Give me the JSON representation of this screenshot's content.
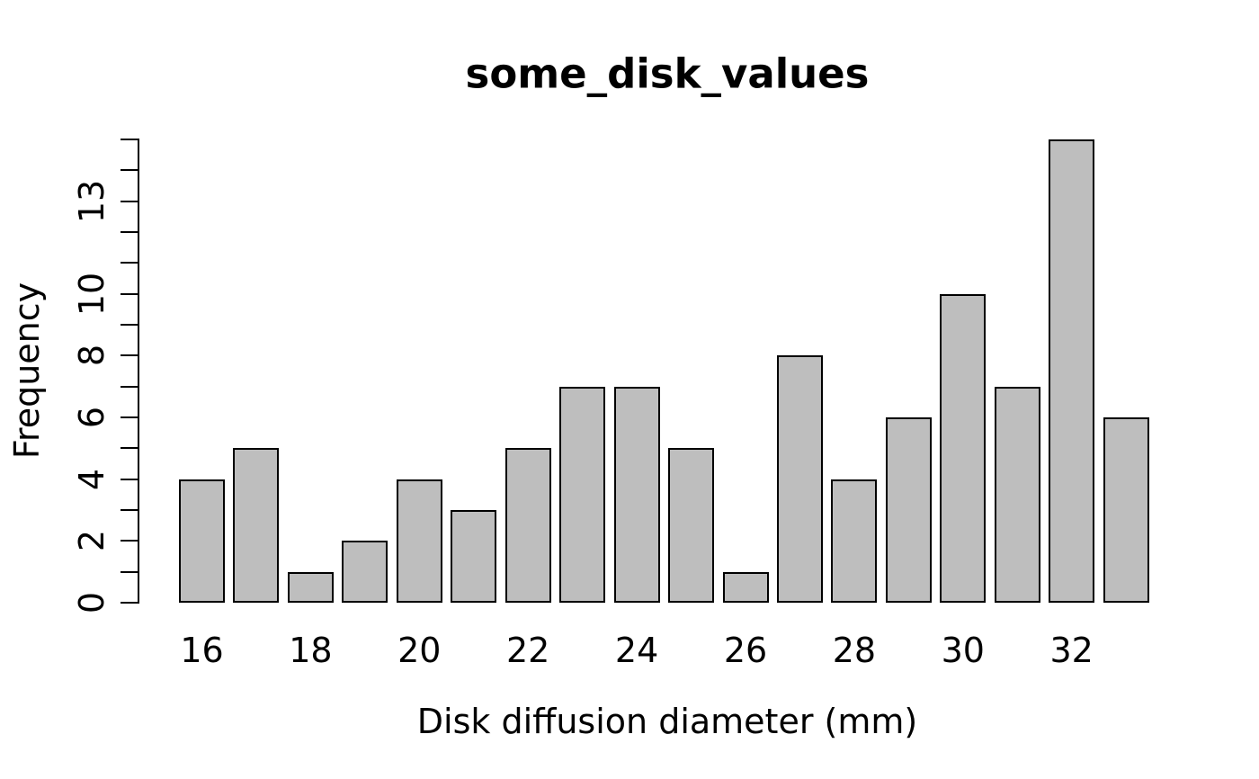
{
  "chart_data": {
    "type": "bar",
    "title": "some_disk_values",
    "xlabel": "Disk diffusion diameter (mm)",
    "ylabel": "Frequency",
    "categories": [
      16,
      17,
      18,
      19,
      20,
      21,
      22,
      23,
      24,
      25,
      26,
      27,
      28,
      29,
      30,
      31,
      32,
      33
    ],
    "values": [
      4,
      5,
      1,
      2,
      4,
      3,
      5,
      7,
      7,
      5,
      1,
      8,
      4,
      6,
      10,
      7,
      15,
      6
    ],
    "ylim": [
      0,
      15
    ],
    "y_tick_step": 1,
    "y_labeled_ticks": [
      0,
      2,
      4,
      6,
      8,
      10,
      13
    ],
    "x_labeled_categories": [
      16,
      18,
      20,
      22,
      24,
      26,
      28,
      30,
      32
    ],
    "grid": false,
    "bar_fill_color": "#bebebe",
    "bar_border_color": "#000000",
    "axis_color": "#000000",
    "text_color": "#000000",
    "background_color": "#ffffff"
  }
}
